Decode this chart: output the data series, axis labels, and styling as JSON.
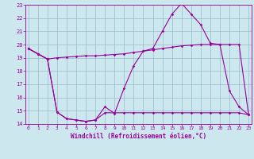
{
  "xlabel": "Windchill (Refroidissement éolien,°C)",
  "background_color": "#cce8ee",
  "grid_color": "#99bbcc",
  "line_color": "#990099",
  "x_values": [
    0,
    1,
    2,
    3,
    4,
    5,
    6,
    7,
    8,
    9,
    10,
    11,
    12,
    13,
    14,
    15,
    16,
    17,
    18,
    19,
    20,
    21,
    22,
    23
  ],
  "line1": [
    19.7,
    19.3,
    18.9,
    14.9,
    14.4,
    14.3,
    14.2,
    14.3,
    15.3,
    14.8,
    16.7,
    18.4,
    19.5,
    19.7,
    21.0,
    22.3,
    23.1,
    22.3,
    21.5,
    20.1,
    20.0,
    16.5,
    15.3,
    14.7
  ],
  "line2": [
    19.7,
    19.3,
    18.9,
    19.0,
    19.05,
    19.1,
    19.15,
    19.15,
    19.2,
    19.25,
    19.3,
    19.4,
    19.5,
    19.6,
    19.7,
    19.8,
    19.9,
    19.95,
    20.0,
    20.0,
    20.0,
    20.0,
    20.0,
    14.7
  ],
  "line3": [
    19.7,
    19.3,
    18.9,
    14.9,
    14.4,
    14.3,
    14.2,
    14.3,
    14.85,
    14.85,
    14.85,
    14.85,
    14.85,
    14.85,
    14.85,
    14.85,
    14.85,
    14.85,
    14.85,
    14.85,
    14.85,
    14.85,
    14.85,
    14.7
  ],
  "ylim": [
    14,
    23
  ],
  "yticks": [
    14,
    15,
    16,
    17,
    18,
    19,
    20,
    21,
    22,
    23
  ],
  "xticks": [
    0,
    1,
    2,
    3,
    4,
    5,
    6,
    7,
    8,
    9,
    10,
    11,
    12,
    13,
    14,
    15,
    16,
    17,
    18,
    19,
    20,
    21,
    22,
    23
  ]
}
